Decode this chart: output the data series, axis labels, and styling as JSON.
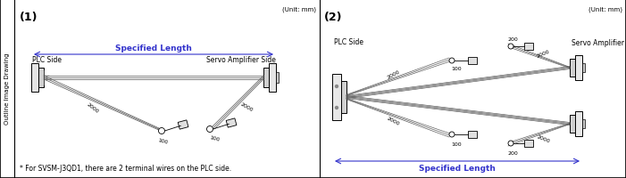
{
  "bg_color": "#ffffff",
  "border_color": "#000000",
  "line_color": "#555555",
  "text_color": "#000000",
  "blue_color": "#3333cc",
  "label1": "(1)",
  "label2": "(2)",
  "unit_text": "(Unit: mm)",
  "plc_side": "PLC Side",
  "servo_side": "Servo Amplifier Side",
  "specified_length": "Specified Length",
  "footnote": "* For SVSM-J3QD1, there are 2 terminal wires on the PLC side.",
  "outline_label": "Outline Image Drawing",
  "dim_2000": "2000",
  "dim_100": "100",
  "dim_200": "200"
}
